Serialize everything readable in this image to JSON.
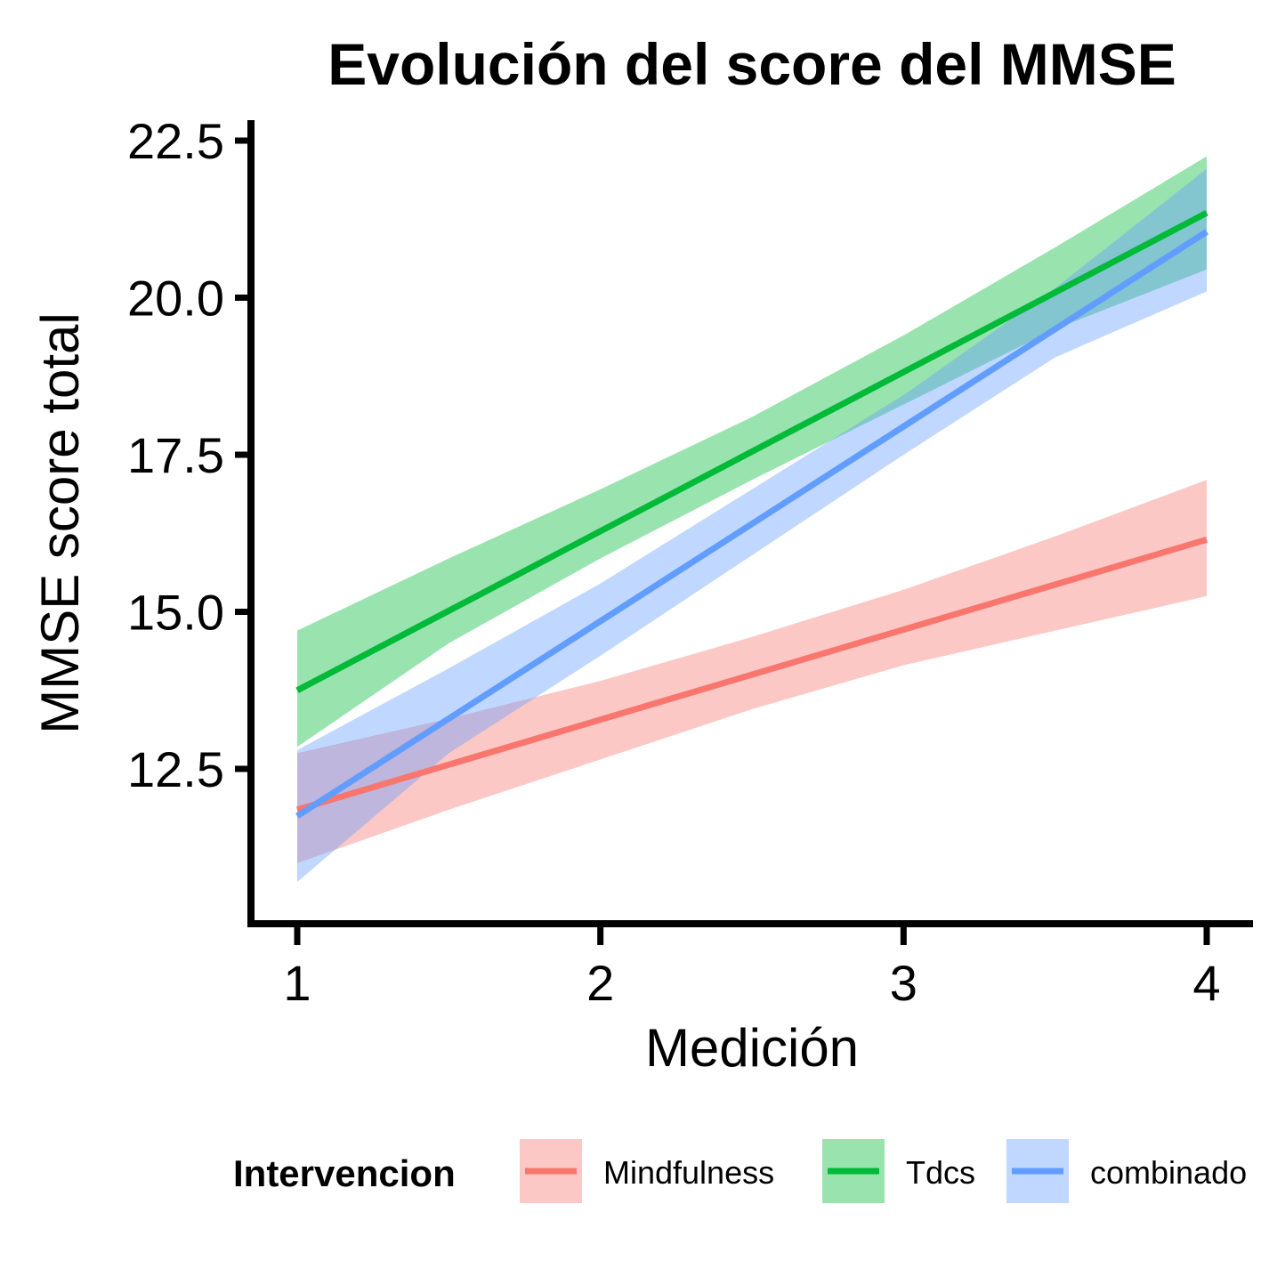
{
  "chart_data": {
    "type": "line",
    "title": "Evolución del score del MMSE",
    "xlabel": "Medición",
    "ylabel": "MMSE score total",
    "xlim": [
      0.85,
      4.15
    ],
    "ylim": [
      10.0,
      22.8
    ],
    "x_ticks": [
      1,
      2,
      3,
      4
    ],
    "x_tick_labels": [
      "1",
      "2",
      "3",
      "4"
    ],
    "y_ticks": [
      12.5,
      15.0,
      17.5,
      20.0,
      22.5
    ],
    "y_tick_labels": [
      "12.5",
      "15.0",
      "17.5",
      "20.0",
      "22.5"
    ],
    "grid": false,
    "legend": {
      "title": "Intervencion",
      "position": "bottom"
    },
    "series": [
      {
        "name": "Mindfulness",
        "color": "#F8766D",
        "x": [
          1,
          4
        ],
        "y": [
          11.85,
          16.15
        ],
        "band_x": [
          1,
          1.5,
          2,
          2.5,
          3,
          3.5,
          4
        ],
        "band_lower": [
          11.0,
          11.85,
          12.65,
          13.45,
          14.15,
          14.7,
          15.25
        ],
        "band_upper": [
          12.75,
          13.3,
          13.9,
          14.6,
          15.35,
          16.2,
          17.1
        ]
      },
      {
        "name": "Tdcs",
        "color": "#00BA38",
        "x": [
          1,
          4
        ],
        "y": [
          13.75,
          21.35
        ],
        "band_x": [
          1,
          1.5,
          2,
          2.5,
          3,
          3.5,
          4
        ],
        "band_lower": [
          12.85,
          14.5,
          15.85,
          17.1,
          18.3,
          19.5,
          20.45
        ],
        "band_upper": [
          14.7,
          15.85,
          16.95,
          18.1,
          19.4,
          20.8,
          22.25
        ]
      },
      {
        "name": "combinado",
        "color": "#619CFF",
        "x": [
          1,
          4
        ],
        "y": [
          11.75,
          21.05
        ],
        "band_x": [
          1,
          1.5,
          2,
          2.5,
          3,
          3.5,
          4
        ],
        "band_lower": [
          10.7,
          12.75,
          14.3,
          15.9,
          17.5,
          19.05,
          20.1
        ],
        "band_upper": [
          12.8,
          14.1,
          15.45,
          16.95,
          18.45,
          20.15,
          22.05
        ]
      }
    ]
  }
}
